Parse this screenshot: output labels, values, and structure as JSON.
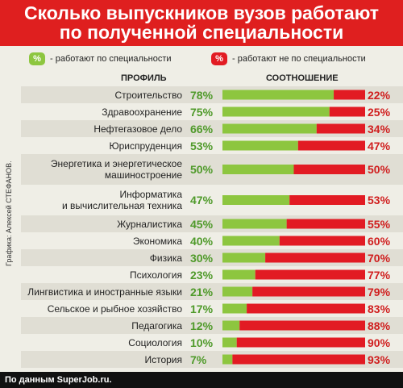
{
  "title": {
    "line1": "Сколько выпускников вузов работают",
    "line2": "по полученной специальности"
  },
  "legend": {
    "work_badge": "%",
    "work_text": "- работают по специальности",
    "notwork_badge": "%",
    "notwork_text": "- работают не по специальности"
  },
  "headers": {
    "profile": "ПРОФИЛЬ",
    "ratio": "СООТНОШЕНИЕ"
  },
  "credit": "Графика: Алексей СТЕФАНОВ.",
  "source": "По данным SuperJob.ru.",
  "colors": {
    "green": "#8dc63f",
    "red": "#e21b23",
    "green_text": "#4f9a2a",
    "red_text": "#d01e1e",
    "title_bg": "#df1f1f"
  },
  "chart_data": {
    "type": "bar",
    "stacked": true,
    "orientation": "horizontal",
    "categories": [
      "Строительство",
      "Здравоохранение",
      "Нефтегазовое дело",
      "Юриспруденция",
      "Энергетика и энергетическое машиностроение",
      "Информатика и вычислительная техника",
      "Журналистика",
      "Экономика",
      "Физика",
      "Психология",
      "Лингвистика и иностранные языки",
      "Сельское и рыбное хозяйство",
      "Педагогика",
      "Социология",
      "История"
    ],
    "category_lines": [
      [
        "Строительство"
      ],
      [
        "Здравоохранение"
      ],
      [
        "Нефтегазовое дело"
      ],
      [
        "Юриспруденция"
      ],
      [
        "Энергетика и энергетическое",
        "машиностроение"
      ],
      [
        "Информатика",
        "и вычислительная техника"
      ],
      [
        "Журналистика"
      ],
      [
        "Экономика"
      ],
      [
        "Физика"
      ],
      [
        "Психология"
      ],
      [
        "Лингвистика и иностранные языки"
      ],
      [
        "Сельское и рыбное хозяйство"
      ],
      [
        "Педагогика"
      ],
      [
        "Социология"
      ],
      [
        "История"
      ]
    ],
    "series": [
      {
        "name": "работают по специальности",
        "values": [
          78,
          75,
          66,
          53,
          50,
          47,
          45,
          40,
          30,
          23,
          21,
          17,
          12,
          10,
          7
        ]
      },
      {
        "name": "работают не по специальности",
        "values": [
          22,
          25,
          34,
          47,
          50,
          53,
          55,
          60,
          70,
          77,
          79,
          83,
          88,
          90,
          93
        ]
      }
    ],
    "labels_work": [
      "78%",
      "75%",
      "66%",
      "53%",
      "50%",
      "47%",
      "45%",
      "40%",
      "30%",
      "23%",
      "21%",
      "17%",
      "12%",
      "10%",
      "7%"
    ],
    "labels_notwork": [
      "22%",
      "25%",
      "34%",
      "47%",
      "50%",
      "53%",
      "55%",
      "60%",
      "70%",
      "77%",
      "79%",
      "83%",
      "88%",
      "90%",
      "93%"
    ],
    "xlim": [
      0,
      100
    ]
  }
}
